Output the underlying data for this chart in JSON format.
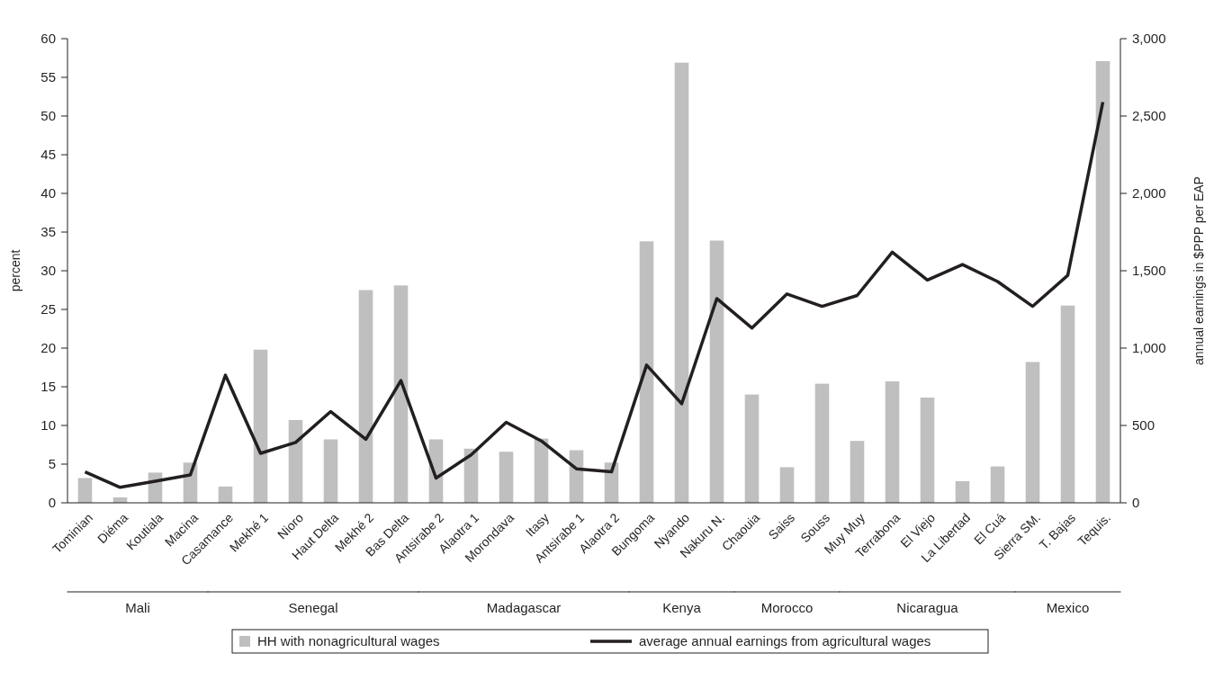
{
  "chart_data": {
    "type": "bar",
    "ylabel": "percent",
    "y2label": "annual earnings in $PPP per EAP",
    "categories": [
      "Tominian",
      "Diéma",
      "Koutiala",
      "Macina",
      "Casamance",
      "Mekhé 1",
      "Nioro",
      "Haut Delta",
      "Mekhé 2",
      "Bas Delta",
      "Antsirabe 2",
      "Alaotra 1",
      "Morondava",
      "Itasy",
      "Antsirabe 1",
      "Alaotra 2",
      "Bungoma",
      "Nyando",
      "Nakuru N.",
      "Chaouia",
      "Saiss",
      "Souss",
      "Muy Muy",
      "Terrabona",
      "El Viejo",
      "La Libertad",
      "El Cuá",
      "Sierra SM.",
      "T. Bajas",
      "Tequis."
    ],
    "series": [
      {
        "name": "HH with nonagricultural wages",
        "color": "#bfbfbf",
        "values": [
          3.2,
          0.7,
          3.9,
          5.2,
          2.1,
          19.8,
          10.7,
          8.2,
          27.5,
          28.1,
          8.2,
          7.0,
          6.6,
          8.3,
          6.8,
          5.2,
          33.8,
          56.9,
          33.9,
          14.0,
          4.6,
          15.4,
          8.0,
          15.7,
          13.6,
          2.8,
          4.7,
          18.2,
          25.5,
          57.1
        ]
      },
      {
        "name": "average annual earnings from agricultural wages",
        "type": "line",
        "axis": "y2",
        "color": "#231f20",
        "values": [
          200,
          100,
          140,
          180,
          825,
          320,
          390,
          590,
          410,
          790,
          160,
          310,
          520,
          400,
          220,
          200,
          890,
          640,
          1320,
          1130,
          1350,
          1270,
          1340,
          1620,
          1440,
          1540,
          1430,
          1270,
          1470,
          2590
        ]
      }
    ],
    "ylim": [
      0,
      60
    ],
    "yticks": [
      0,
      5,
      10,
      15,
      20,
      25,
      30,
      35,
      40,
      45,
      50,
      55,
      60
    ],
    "y2lim": [
      0,
      3000
    ],
    "y2ticks": [
      0,
      {
        "value": 500,
        "label": "500"
      },
      {
        "value": 1000,
        "label": "1,000"
      },
      {
        "value": 1500,
        "label": "1,500"
      },
      {
        "value": 2000,
        "label": "2,000"
      },
      {
        "value": 2500,
        "label": "2,500"
      },
      {
        "value": 3000,
        "label": "3,000"
      }
    ],
    "annotations": [
      "Mali",
      "Senegal",
      "Madagascar",
      "Kenya",
      "Morocco",
      "Nicaragua",
      "Mexico"
    ],
    "grid": false,
    "legend": "bottom",
    "line_style": "solid",
    "marker": "none"
  }
}
